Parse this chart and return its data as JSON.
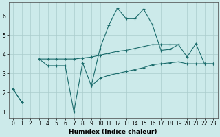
{
  "xlabel": "Humidex (Indice chaleur)",
  "bg_color": "#cceaea",
  "grid_color": "#aacccc",
  "line_color": "#1a6b6b",
  "x_data": [
    0,
    1,
    2,
    3,
    4,
    5,
    6,
    7,
    8,
    9,
    10,
    11,
    12,
    13,
    14,
    15,
    16,
    17,
    18,
    19,
    20,
    21,
    22,
    23
  ],
  "series_jagged": [
    2.2,
    1.5,
    null,
    3.75,
    3.4,
    3.4,
    3.4,
    1.0,
    3.55,
    2.35,
    4.3,
    5.5,
    6.4,
    5.85,
    5.85,
    6.35,
    5.55,
    4.2,
    4.25,
    4.5,
    3.85,
    4.55,
    3.5,
    3.5
  ],
  "series_flat": [
    null,
    null,
    null,
    3.75,
    3.75,
    3.75,
    3.75,
    3.75,
    3.8,
    3.85,
    3.95,
    4.05,
    4.15,
    4.2,
    4.3,
    4.4,
    4.5,
    4.5,
    4.5,
    4.5,
    null,
    null,
    null,
    null
  ],
  "series_lower": [
    2.2,
    1.5,
    null,
    null,
    null,
    null,
    null,
    null,
    null,
    2.35,
    2.75,
    2.9,
    3.0,
    3.1,
    3.2,
    3.3,
    3.45,
    3.5,
    3.55,
    3.6,
    3.5,
    3.5,
    3.5,
    3.5
  ],
  "ylim": [
    0.7,
    6.7
  ],
  "xlim": [
    -0.5,
    23.5
  ],
  "yticks": [
    1,
    2,
    3,
    4,
    5,
    6
  ],
  "xticks": [
    0,
    1,
    2,
    3,
    4,
    5,
    6,
    7,
    8,
    9,
    10,
    11,
    12,
    13,
    14,
    15,
    16,
    17,
    18,
    19,
    20,
    21,
    22,
    23
  ]
}
